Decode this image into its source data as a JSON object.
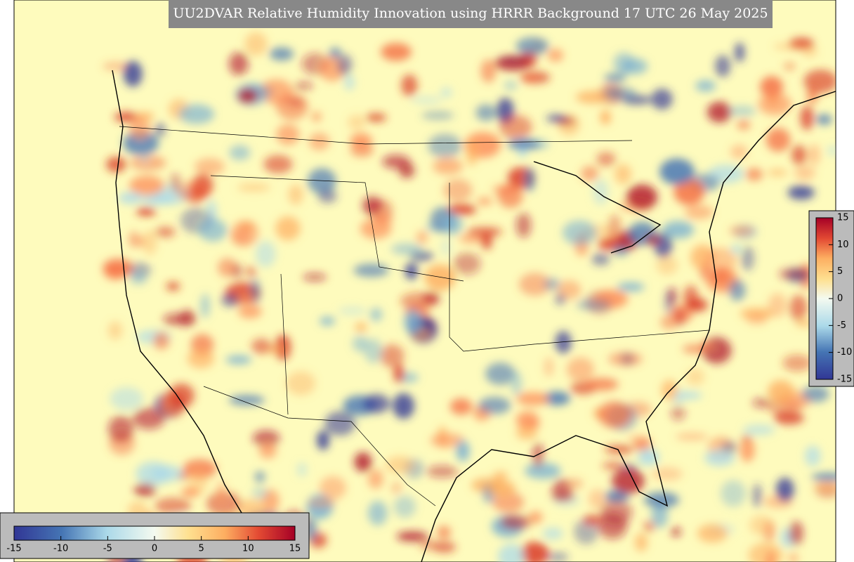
{
  "title": "UU2DVAR Relative Humidity Innovation using HRRR Background 17 UTC 26 May 2025",
  "colorbar": {
    "lim": [
      -15,
      15
    ],
    "ticks": [
      -15,
      -10,
      -5,
      0,
      5,
      10,
      15
    ]
  }
}
